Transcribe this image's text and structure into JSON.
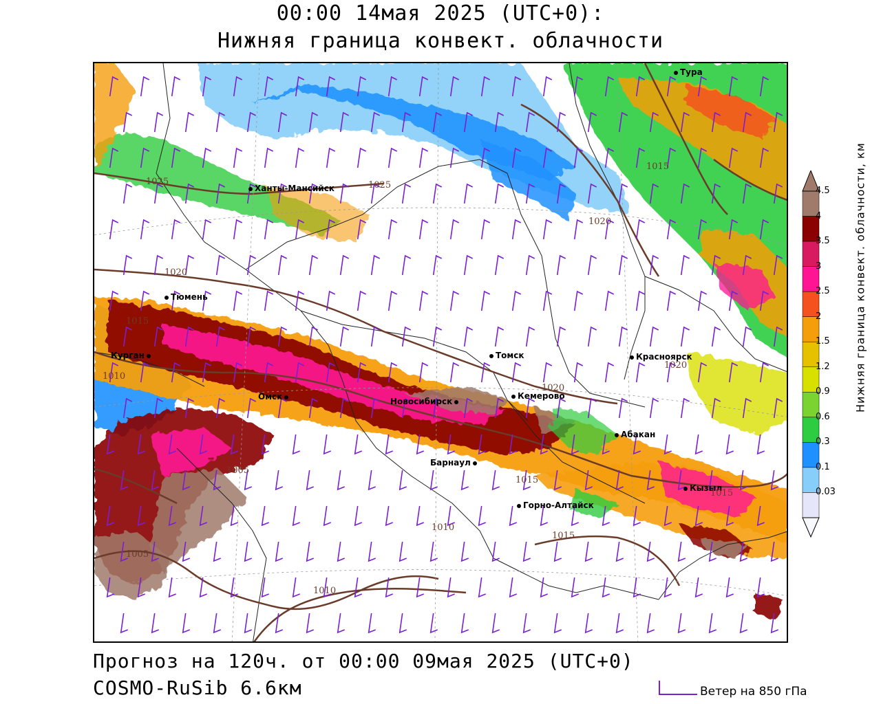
{
  "header": {
    "line1": "00:00 14мая 2025 (UTC+0):",
    "line2": "Нижняя граница конвект. облачности"
  },
  "footer": {
    "forecast": "Прогноз на 120ч. от 00:00 09мая 2025 (UTC+0)",
    "model": "COSMO-RuSib 6.6км",
    "wind_legend": "Ветер на 850 гПа"
  },
  "colorbar": {
    "title": "Нижняя граница конвект. облачности, км",
    "labels": [
      "4.5",
      "4",
      "3.5",
      "3",
      "2.5",
      "2",
      "1.5",
      "1.2",
      "0.9",
      "0.6",
      "0.3",
      "0.1",
      "0.03"
    ],
    "colors": [
      "#a07a6a",
      "#8b0000",
      "#d81b60",
      "#ff1493",
      "#f4511e",
      "#f59e0b",
      "#e5c100",
      "#d8e000",
      "#7bd331",
      "#2ecc40",
      "#1e90ff",
      "#87cefa",
      "#e6e6fa"
    ]
  },
  "cities": [
    {
      "name": "Тура"
    },
    {
      "name": "Ханты-Мансийск"
    },
    {
      "name": "Тюмень"
    },
    {
      "name": "Курган"
    },
    {
      "name": "Омск"
    },
    {
      "name": "Новосибирск"
    },
    {
      "name": "Томск"
    },
    {
      "name": "Кемерово"
    },
    {
      "name": "Красноярск"
    },
    {
      "name": "Абакан"
    },
    {
      "name": "Барнаул"
    },
    {
      "name": "Горно-Алтайск"
    },
    {
      "name": "Кызыл"
    }
  ],
  "isobars": [
    "1025",
    "1025",
    "1020",
    "1020",
    "1020",
    "1015",
    "1015",
    "1015",
    "1015",
    "1010",
    "1010",
    "1010",
    "1005",
    "1005",
    "1015",
    "1020"
  ]
}
